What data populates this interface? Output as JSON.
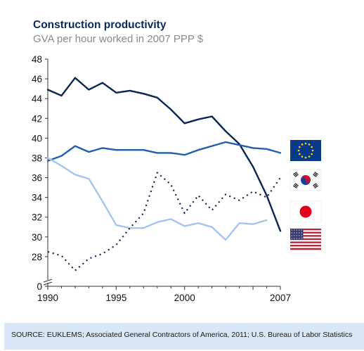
{
  "chart_data": {
    "type": "line",
    "title": "Construction productivity",
    "subtitle": "GVA per hour worked in 2007 PPP $",
    "xlabel": "",
    "ylabel": "",
    "ylim_displayed": [
      26,
      48
    ],
    "axis_break": true,
    "y_ticks": [
      "0",
      "28",
      "30",
      "32",
      "34",
      "36",
      "38",
      "40",
      "42",
      "44",
      "46",
      "48"
    ],
    "x_ticks": [
      "1990",
      "1995",
      "2000",
      "2007"
    ],
    "grid": false,
    "legend": "right, flag icons",
    "series": [
      {
        "flag": "us-flag-icon",
        "color": "#0b2454",
        "style": "solid",
        "x": [
          1990,
          1991,
          1992,
          1993,
          1994,
          1995,
          1996,
          1997,
          1998,
          1999,
          2000,
          2001,
          2002,
          2003,
          2004,
          2005,
          2006,
          2007
        ],
        "values": [
          44.9,
          44.3,
          46.1,
          44.9,
          45.6,
          44.6,
          44.8,
          44.5,
          44.1,
          42.9,
          41.5,
          41.9,
          42.2,
          40.7,
          39.4,
          37.1,
          34.2,
          30.6
        ]
      },
      {
        "flag": "eu-flag-icon",
        "color": "#1f5fae",
        "style": "solid",
        "x": [
          1990,
          1991,
          1992,
          1993,
          1994,
          1995,
          1996,
          1997,
          1998,
          1999,
          2000,
          2001,
          2002,
          2003,
          2004,
          2005,
          2006,
          2007
        ],
        "values": [
          37.7,
          38.2,
          39.2,
          38.6,
          39.0,
          38.8,
          38.8,
          38.8,
          38.5,
          38.5,
          38.3,
          38.8,
          39.2,
          39.6,
          39.3,
          39.0,
          38.9,
          38.5
        ]
      },
      {
        "flag": "japan-flag-icon",
        "color": "#a5c3ee",
        "style": "solid",
        "x": [
          1990,
          1991,
          1992,
          1993,
          1994,
          1995,
          1996,
          1997,
          1998,
          1999,
          2000,
          2001,
          2002,
          2003,
          2004,
          2005,
          2006
        ],
        "values": [
          38.0,
          37.2,
          36.3,
          35.9,
          33.6,
          31.2,
          30.9,
          30.9,
          31.5,
          31.8,
          31.1,
          31.4,
          31.0,
          29.7,
          31.4,
          31.3,
          31.7
        ]
      },
      {
        "flag": "korea-flag-icon",
        "color": "#0b2454",
        "style": "dotted",
        "x": [
          1990,
          1991,
          1992,
          1993,
          1994,
          1995,
          1996,
          1997,
          1998,
          1999,
          2000,
          2001,
          2002,
          2003,
          2004,
          2005,
          2006,
          2007
        ],
        "values": [
          28.5,
          28.1,
          26.6,
          27.8,
          28.3,
          29.2,
          30.9,
          32.4,
          36.5,
          35.3,
          32.4,
          34.2,
          32.7,
          34.3,
          33.7,
          34.6,
          34.0,
          36.0
        ]
      }
    ]
  },
  "source": "SOURCE: EUKLEMS; Associated General Contractors of America, 2011; U.S. Bureau of Labor Statistics"
}
